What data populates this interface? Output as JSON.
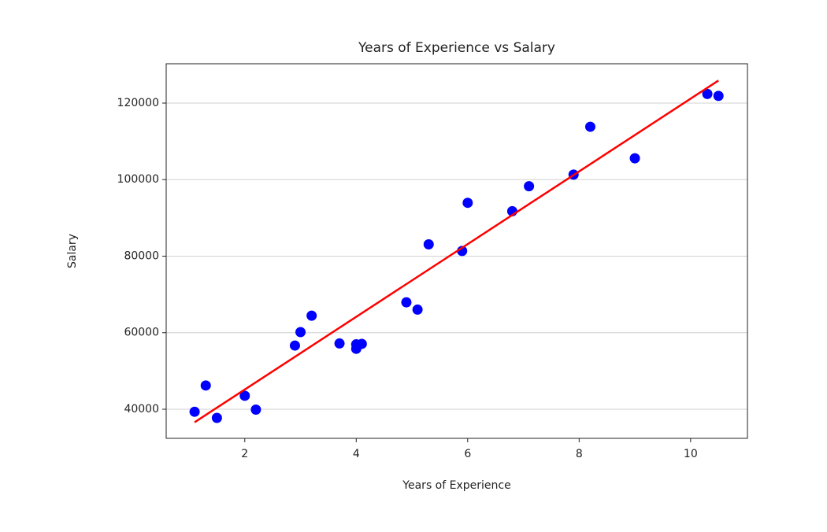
{
  "chart_data": {
    "type": "scatter",
    "title": "Years of Experience vs Salary",
    "xlabel": "Years of Experience",
    "ylabel": "Salary",
    "points": {
      "color": "#0000ff",
      "x": [
        1.1,
        1.3,
        1.5,
        2.0,
        2.2,
        2.9,
        3.0,
        3.2,
        3.7,
        4.0,
        4.0,
        4.1,
        4.9,
        5.1,
        5.3,
        5.9,
        6.0,
        6.8,
        7.1,
        7.9,
        8.2,
        9.0,
        10.3,
        10.5
      ],
      "y": [
        39343,
        46205,
        37731,
        43525,
        39891,
        56642,
        60150,
        64445,
        57189,
        55794,
        56957,
        57081,
        67938,
        66029,
        83088,
        81363,
        93940,
        91738,
        98273,
        101302,
        113812,
        105582,
        122391,
        121872
      ]
    },
    "fit_line": {
      "color": "#ff0000",
      "x": [
        1.1,
        10.5
      ],
      "y": [
        36600,
        125900
      ]
    },
    "xlim": [
      0.59,
      11.02
    ],
    "ylim": [
      32390,
      130280
    ],
    "xticks": [
      2,
      4,
      6,
      8,
      10
    ],
    "yticks": [
      40000,
      60000,
      80000,
      100000,
      120000
    ],
    "grid": "y"
  }
}
